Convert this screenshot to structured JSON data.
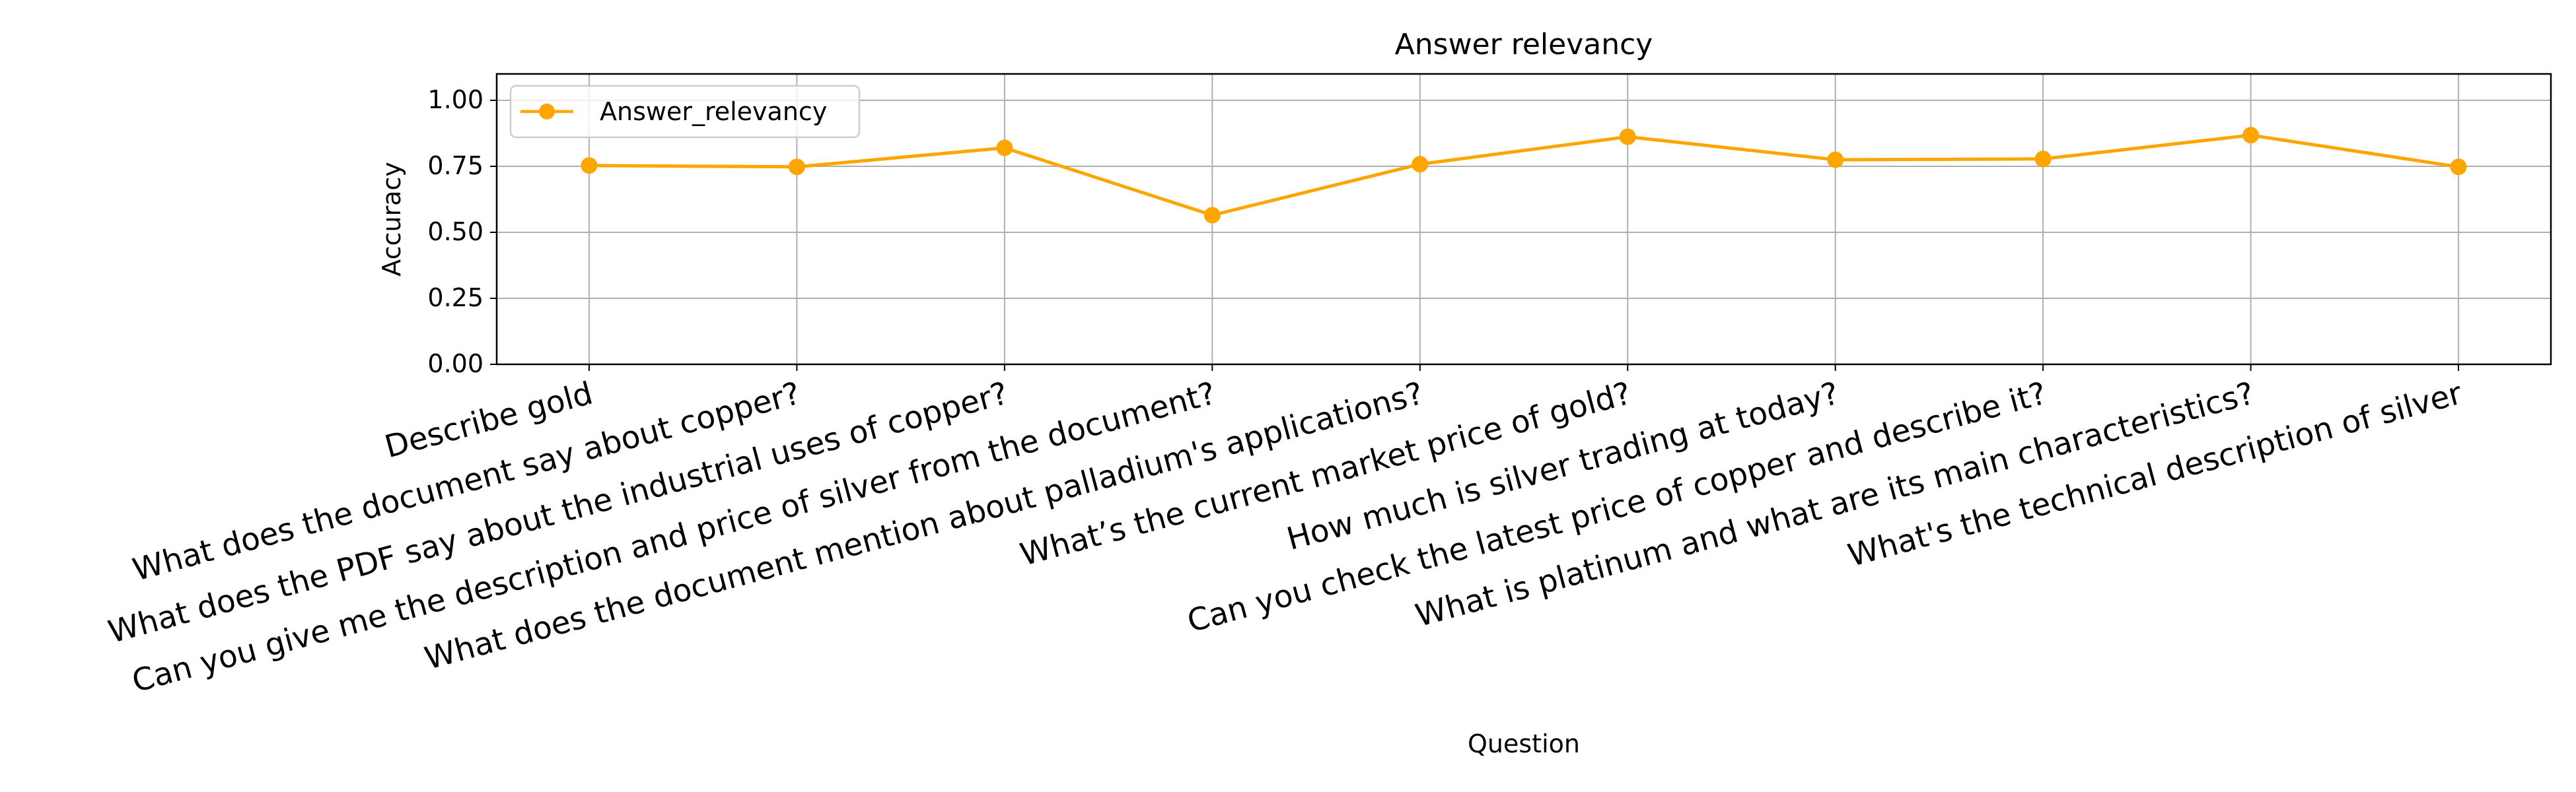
{
  "chart_data": {
    "type": "line",
    "title": "Answer relevancy",
    "xlabel": "Question",
    "ylabel": "Accuracy",
    "ylim": [
      0,
      1.1
    ],
    "yticks": [
      0.0,
      0.25,
      0.5,
      0.75,
      1.0
    ],
    "ytick_labels": [
      "0.00",
      "0.25",
      "0.50",
      "0.75",
      "1.00"
    ],
    "grid": true,
    "legend_position": "upper-left",
    "categories": [
      "Describe gold",
      "What does the document say about copper?",
      "What does the PDF say about the industrial uses of copper?",
      "Can you give me the description and price of silver from the document?",
      "What does the document mention about palladium's applications?",
      "What’s the current market price of gold?",
      "How much is silver trading at today?",
      "Can you check the latest price of copper and describe it?",
      "What is platinum and what are its main characteristics?",
      "What's the technical description of silver"
    ],
    "series": [
      {
        "name": "Answer_relevancy",
        "color": "#FFA500",
        "marker": "circle",
        "values": [
          0.753,
          0.748,
          0.82,
          0.565,
          0.758,
          0.862,
          0.775,
          0.778,
          0.868,
          0.748
        ]
      }
    ]
  }
}
